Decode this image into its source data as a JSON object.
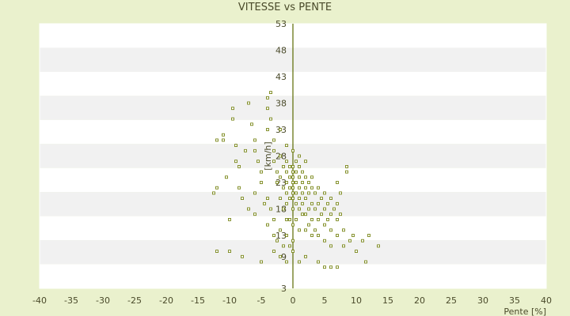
{
  "chart_data": {
    "type": "scatter",
    "title": "VITESSE vs PENTE",
    "xlabel": "Pente [%]",
    "ylabel": "[km/h]",
    "xlim": [
      -40,
      40
    ],
    "ylim": [
      3,
      53
    ],
    "x_ticks": [
      -40,
      -35,
      -30,
      -25,
      -20,
      -15,
      -10,
      -5,
      0,
      5,
      10,
      15,
      20,
      25,
      30,
      35,
      40
    ],
    "y_ticks": [
      3,
      9,
      13,
      18,
      23,
      28,
      33,
      38,
      43,
      48,
      53
    ],
    "grid": "horizontal alternating bands",
    "legend": "none",
    "colors": {
      "background": "#eaf1cd",
      "band_light": "#ffffff",
      "band_dark": "#f1f1f1",
      "point": "#6b7a00",
      "axis": "#5a6a00"
    },
    "series": [
      {
        "points": [
          [
            -12,
            10
          ],
          [
            -10,
            10
          ],
          [
            -9.5,
            37
          ],
          [
            -9.5,
            35
          ],
          [
            -11,
            32
          ],
          [
            -9,
            30
          ],
          [
            -9,
            27
          ],
          [
            -8.5,
            26
          ],
          [
            -7,
            38
          ],
          [
            -6.5,
            34
          ],
          [
            -6,
            31
          ],
          [
            -6,
            29
          ],
          [
            -5.5,
            27
          ],
          [
            -5,
            25
          ],
          [
            -5,
            23
          ],
          [
            -4,
            39
          ],
          [
            -4,
            37
          ],
          [
            -4,
            33
          ],
          [
            -3.5,
            40
          ],
          [
            -3.5,
            35
          ],
          [
            -3,
            31
          ],
          [
            -3,
            29
          ],
          [
            -3,
            27
          ],
          [
            -2.5,
            25
          ],
          [
            -2.5,
            23
          ],
          [
            -2,
            33
          ],
          [
            -2,
            28
          ],
          [
            -2,
            24
          ],
          [
            -2,
            20
          ],
          [
            -1.5,
            26
          ],
          [
            -1.5,
            22
          ],
          [
            -1.5,
            18
          ],
          [
            -1,
            30
          ],
          [
            -1,
            27
          ],
          [
            -1,
            25
          ],
          [
            -1,
            23
          ],
          [
            -1,
            21
          ],
          [
            -1,
            19
          ],
          [
            -0.5,
            26
          ],
          [
            -0.5,
            24
          ],
          [
            -0.5,
            22
          ],
          [
            -0.5,
            20
          ],
          [
            -0.5,
            16
          ],
          [
            0,
            29
          ],
          [
            0,
            26
          ],
          [
            0,
            25
          ],
          [
            0,
            24
          ],
          [
            0,
            23
          ],
          [
            0,
            22
          ],
          [
            0,
            21
          ],
          [
            0,
            20
          ],
          [
            0,
            18
          ],
          [
            0,
            15
          ],
          [
            0,
            12
          ],
          [
            0.5,
            27
          ],
          [
            0.5,
            25
          ],
          [
            0.5,
            23
          ],
          [
            0.5,
            21
          ],
          [
            0.5,
            19
          ],
          [
            0.5,
            16
          ],
          [
            1,
            28
          ],
          [
            1,
            26
          ],
          [
            1,
            24
          ],
          [
            1,
            22
          ],
          [
            1,
            20
          ],
          [
            1,
            18
          ],
          [
            1,
            14
          ],
          [
            1.5,
            25
          ],
          [
            1.5,
            23
          ],
          [
            1.5,
            21
          ],
          [
            1.5,
            19
          ],
          [
            1.5,
            17
          ],
          [
            2,
            27
          ],
          [
            2,
            24
          ],
          [
            2,
            22
          ],
          [
            2,
            20
          ],
          [
            2,
            17
          ],
          [
            2,
            14
          ],
          [
            2.5,
            23
          ],
          [
            2.5,
            21
          ],
          [
            2.5,
            18
          ],
          [
            2.5,
            15
          ],
          [
            3,
            24
          ],
          [
            3,
            22
          ],
          [
            3,
            19
          ],
          [
            3,
            16
          ],
          [
            3,
            13
          ],
          [
            3.5,
            21
          ],
          [
            3.5,
            18
          ],
          [
            3.5,
            14
          ],
          [
            4,
            22
          ],
          [
            4,
            19
          ],
          [
            4,
            16
          ],
          [
            4,
            13
          ],
          [
            4.5,
            20
          ],
          [
            4.5,
            17
          ],
          [
            5,
            21
          ],
          [
            5,
            18
          ],
          [
            5,
            15
          ],
          [
            5,
            12
          ],
          [
            5.5,
            19
          ],
          [
            5.5,
            16
          ],
          [
            6,
            20
          ],
          [
            6,
            17
          ],
          [
            6,
            14
          ],
          [
            6,
            11
          ],
          [
            6.5,
            18
          ],
          [
            7,
            23
          ],
          [
            7,
            19
          ],
          [
            7,
            16
          ],
          [
            7,
            13
          ],
          [
            7.5,
            21
          ],
          [
            7.5,
            17
          ],
          [
            8,
            11
          ],
          [
            8,
            14
          ],
          [
            8.5,
            26
          ],
          [
            8.5,
            25
          ],
          [
            9,
            12
          ],
          [
            9.5,
            13
          ],
          [
            10,
            10
          ],
          [
            11,
            12
          ],
          [
            11.5,
            8
          ],
          [
            12,
            13
          ],
          [
            13.5,
            11
          ],
          [
            -8,
            9
          ],
          [
            -5,
            8
          ],
          [
            -3,
            10
          ],
          [
            -2,
            9
          ],
          [
            -1,
            8
          ],
          [
            1,
            8
          ],
          [
            2,
            9
          ],
          [
            4,
            8
          ],
          [
            5,
            7
          ],
          [
            6,
            7
          ],
          [
            7,
            7
          ],
          [
            -12.5,
            21
          ],
          [
            -12,
            22
          ],
          [
            -10,
            16
          ],
          [
            -8,
            20
          ],
          [
            -7,
            18
          ],
          [
            -6,
            17
          ],
          [
            -6,
            21
          ],
          [
            -4.5,
            19
          ],
          [
            -4,
            15
          ],
          [
            -4,
            20
          ],
          [
            -3.5,
            18
          ],
          [
            -3,
            13
          ],
          [
            -3,
            16
          ],
          [
            -2.5,
            12
          ],
          [
            -2,
            14
          ],
          [
            -1.5,
            11
          ],
          [
            -1,
            13
          ],
          [
            -1,
            16
          ],
          [
            -0.5,
            11
          ],
          [
            0,
            10
          ],
          [
            -11,
            31
          ],
          [
            -12,
            31
          ],
          [
            -7.5,
            29
          ],
          [
            -8.5,
            22
          ],
          [
            -10.5,
            24
          ]
        ]
      }
    ]
  }
}
